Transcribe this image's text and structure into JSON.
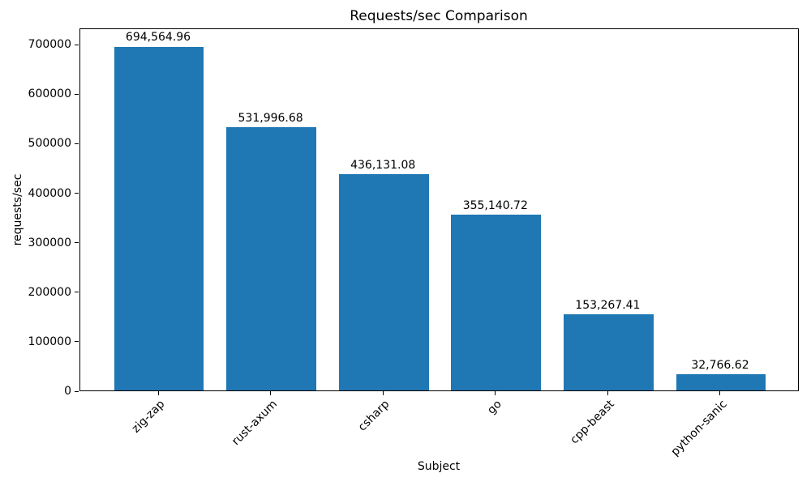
{
  "chart_data": {
    "type": "bar",
    "title": "Requests/sec Comparison",
    "xlabel": "Subject",
    "ylabel": "requests/sec",
    "categories": [
      "zig-zap",
      "rust-axum",
      "csharp",
      "go",
      "cpp-beast",
      "python-sanic"
    ],
    "values": [
      694564.96,
      531996.68,
      436131.08,
      355140.72,
      153267.41,
      32766.62
    ],
    "value_labels": [
      "694,564.96",
      "531,996.68",
      "436,131.08",
      "355,140.72",
      "153,267.41",
      "32,766.62"
    ],
    "yticks": [
      0,
      100000,
      200000,
      300000,
      400000,
      500000,
      600000,
      700000
    ],
    "ytick_labels": [
      "0",
      "100000",
      "200000",
      "300000",
      "400000",
      "500000",
      "600000",
      "700000"
    ],
    "ylim": [
      0,
      733000
    ],
    "bar_color": "#1f77b4",
    "grid": false,
    "legend": "none",
    "x_label_rotation_deg": 45
  }
}
